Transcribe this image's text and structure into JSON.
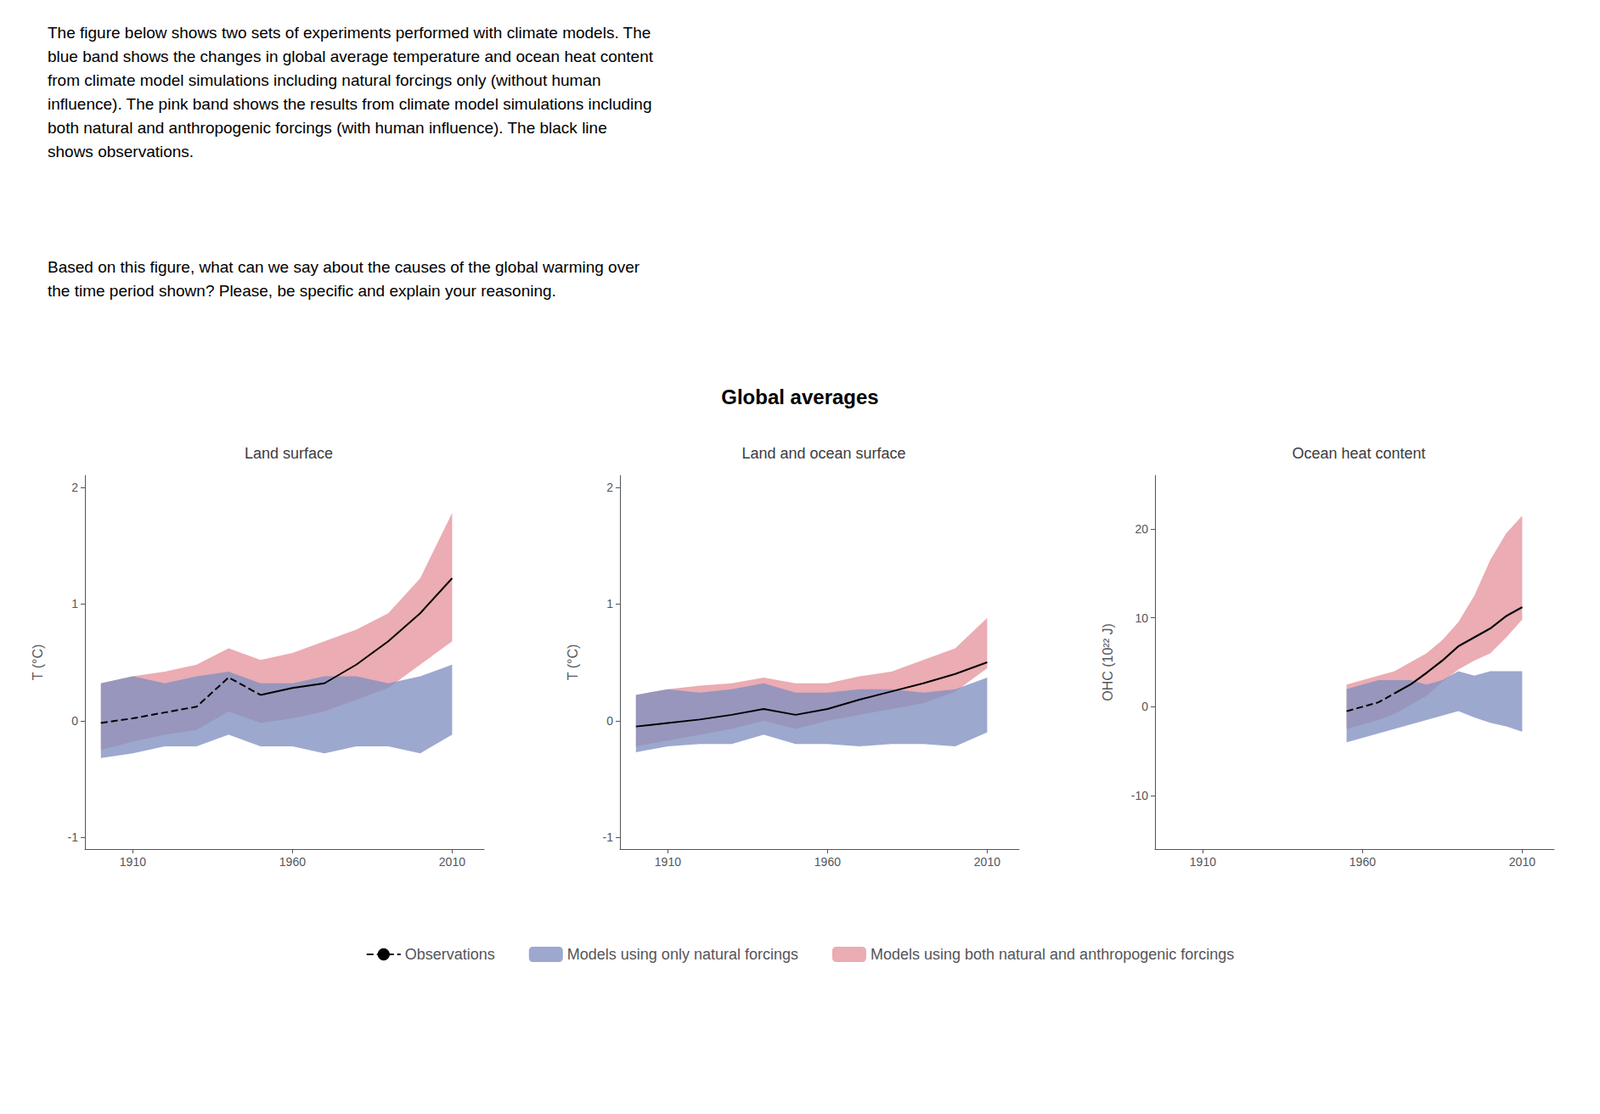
{
  "title": "Global averages",
  "annotations": [
    "The figure below shows two sets of experiments performed with climate models. The\nblue band shows the changes in global average temperature and ocean heat content\nfrom climate model simulations including natural forcings only (without human\ninfluence). The pink band shows the results from climate model simulations including\nboth natural and anthropogenic forcings (with human influence). The black line\nshows observations.",
    "Based on this figure, what can we say about the causes of the global warming over\nthe time period shown? Please, be specific and explain your reasoning."
  ],
  "legend": "bottom",
  "chart_data": [
    {
      "type": "line",
      "title": "Land surface",
      "ylabel": "T (°C)",
      "x": [
        1900,
        1910,
        1920,
        1930,
        1940,
        1950,
        1960,
        1970,
        1980,
        1990,
        2000,
        2010
      ],
      "xlim": [
        1895,
        2020
      ],
      "xticks": [
        1910,
        1960,
        2010
      ],
      "ylim": [
        -1.1,
        2.1
      ],
      "yticks": [
        -1,
        0,
        1,
        2
      ],
      "grid": false,
      "series": [
        {
          "name": "Models using both natural and anthropogenic forcings",
          "type": "band",
          "color": "#E8A0A8",
          "low": [
            -0.25,
            -0.18,
            -0.12,
            -0.08,
            0.08,
            -0.02,
            0.02,
            0.08,
            0.18,
            0.28,
            0.48,
            0.68
          ],
          "high": [
            0.32,
            0.38,
            0.42,
            0.48,
            0.62,
            0.52,
            0.58,
            0.68,
            0.78,
            0.92,
            1.22,
            1.78
          ]
        },
        {
          "name": "Models using only natural forcings",
          "type": "band",
          "color": "#8090C0",
          "low": [
            -0.32,
            -0.28,
            -0.22,
            -0.22,
            -0.12,
            -0.22,
            -0.22,
            -0.28,
            -0.22,
            -0.22,
            -0.28,
            -0.12
          ],
          "high": [
            0.32,
            0.38,
            0.32,
            0.38,
            0.42,
            0.32,
            0.32,
            0.38,
            0.38,
            0.32,
            0.38,
            0.48
          ]
        },
        {
          "name": "Observations",
          "type": "line",
          "color": "#000000",
          "line_style": "dashed",
          "values": [
            -0.02,
            0.02,
            0.07,
            0.12,
            0.37,
            0.22,
            null,
            null,
            null,
            null,
            null,
            null
          ]
        },
        {
          "name": "Observations",
          "type": "line",
          "color": "#000000",
          "line_style": "solid",
          "values": [
            null,
            null,
            null,
            null,
            null,
            0.22,
            0.28,
            0.32,
            0.48,
            0.68,
            0.92,
            1.22
          ]
        }
      ]
    },
    {
      "type": "line",
      "title": "Land and ocean surface",
      "ylabel": "T (°C)",
      "x": [
        1900,
        1910,
        1920,
        1930,
        1940,
        1950,
        1960,
        1970,
        1980,
        1990,
        2000,
        2010
      ],
      "xlim": [
        1895,
        2020
      ],
      "xticks": [
        1910,
        1960,
        2010
      ],
      "ylim": [
        -1.1,
        2.1
      ],
      "yticks": [
        -1,
        0,
        1,
        2
      ],
      "grid": false,
      "series": [
        {
          "name": "Models using both natural and anthropogenic forcings",
          "type": "band",
          "color": "#E8A0A8",
          "low": [
            -0.22,
            -0.17,
            -0.12,
            -0.07,
            0.0,
            -0.07,
            0.0,
            0.05,
            0.1,
            0.15,
            0.25,
            0.45
          ],
          "high": [
            0.22,
            0.27,
            0.3,
            0.32,
            0.37,
            0.32,
            0.32,
            0.38,
            0.42,
            0.52,
            0.62,
            0.88
          ]
        },
        {
          "name": "Models using only natural forcings",
          "type": "band",
          "color": "#8090C0",
          "low": [
            -0.27,
            -0.22,
            -0.2,
            -0.2,
            -0.12,
            -0.2,
            -0.2,
            -0.22,
            -0.2,
            -0.2,
            -0.22,
            -0.1
          ],
          "high": [
            0.22,
            0.27,
            0.24,
            0.27,
            0.32,
            0.24,
            0.24,
            0.27,
            0.27,
            0.24,
            0.27,
            0.37
          ]
        },
        {
          "name": "Observations",
          "type": "line",
          "color": "#000000",
          "line_style": "solid",
          "values": [
            -0.05,
            -0.02,
            0.01,
            0.05,
            0.1,
            0.05,
            0.1,
            0.18,
            0.25,
            0.32,
            0.4,
            0.5
          ]
        }
      ]
    },
    {
      "type": "line",
      "title": "Ocean heat content",
      "ylabel": "OHC (10²² J)",
      "x": [
        1955,
        1960,
        1965,
        1970,
        1975,
        1980,
        1985,
        1990,
        1995,
        2000,
        2005,
        2010
      ],
      "xlim": [
        1895,
        2020
      ],
      "xticks": [
        1910,
        1960,
        2010
      ],
      "ylim": [
        -16,
        26
      ],
      "yticks": [
        -10,
        0,
        10,
        20
      ],
      "grid": false,
      "series": [
        {
          "name": "Models using both natural and anthropogenic forcings",
          "type": "band",
          "color": "#E8A0A8",
          "low": [
            -2.5,
            -2.0,
            -1.5,
            -0.8,
            0.2,
            1.2,
            2.8,
            4.2,
            5.2,
            6.0,
            7.8,
            9.8
          ],
          "high": [
            2.5,
            3.0,
            3.5,
            4.0,
            5.0,
            6.0,
            7.5,
            9.5,
            12.5,
            16.5,
            19.5,
            21.5
          ]
        },
        {
          "name": "Models using only natural forcings",
          "type": "band",
          "color": "#8090C0",
          "low": [
            -4.0,
            -3.5,
            -3.0,
            -2.5,
            -2.0,
            -1.5,
            -1.0,
            -0.5,
            -1.2,
            -1.8,
            -2.2,
            -2.8
          ],
          "high": [
            2.0,
            2.5,
            3.0,
            3.0,
            3.0,
            2.5,
            3.0,
            4.0,
            3.5,
            4.0,
            4.0,
            4.0
          ]
        },
        {
          "type": "line",
          "color": "#707070",
          "line_style": "solid",
          "values": [
            null,
            null,
            null,
            1.42,
            2.42,
            3.72,
            5.12,
            6.72,
            7.72,
            8.72,
            10.12,
            11.12
          ]
        },
        {
          "type": "line",
          "color": "#707070",
          "line_style": "solid",
          "values": [
            null,
            null,
            null,
            1.5,
            2.5,
            3.8,
            5.2,
            6.8,
            7.8,
            8.8,
            10.2,
            11.2
          ]
        },
        {
          "type": "line",
          "color": "#707070",
          "line_style": "solid",
          "values": [
            null,
            null,
            null,
            1.58,
            2.58,
            3.88,
            5.28,
            6.88,
            7.88,
            8.88,
            10.28,
            11.28
          ]
        },
        {
          "name": "Observations",
          "type": "line",
          "color": "#000000",
          "line_style": "dashed",
          "values": [
            -0.5,
            0.0,
            0.5,
            1.5,
            null,
            null,
            null,
            null,
            null,
            null,
            null,
            null
          ]
        },
        {
          "name": "Observations",
          "type": "line",
          "color": "#000000",
          "line_style": "solid",
          "values": [
            null,
            null,
            null,
            1.5,
            2.5,
            3.8,
            5.2,
            6.8,
            7.8,
            8.8,
            10.2,
            11.2
          ]
        }
      ]
    }
  ]
}
